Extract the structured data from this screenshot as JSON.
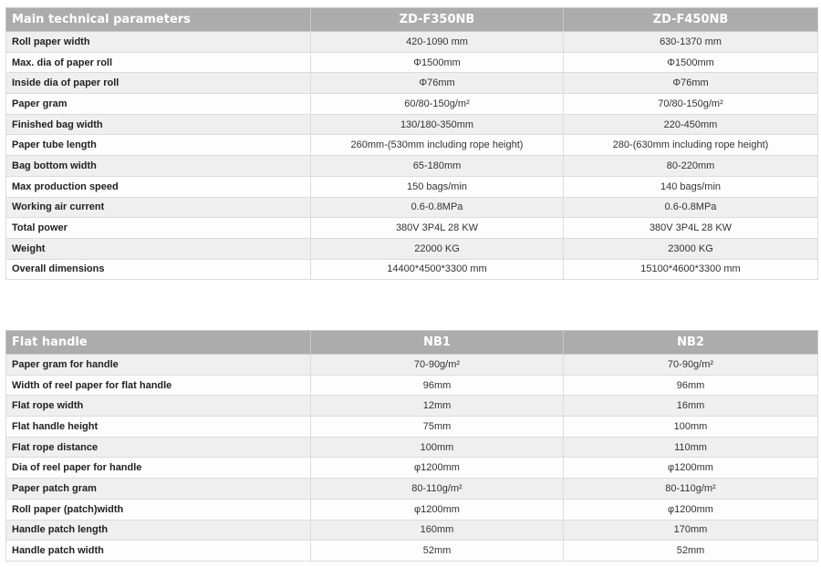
{
  "table1": {
    "headers": [
      "Main technical parameters",
      "ZD-F350NB",
      "ZD-F450NB"
    ],
    "rows": [
      [
        "Roll paper width",
        "420-1090 mm",
        "630-1370 mm"
      ],
      [
        "Max. dia of paper roll",
        "Φ1500mm",
        "Φ1500mm"
      ],
      [
        "Inside dia of paper roll",
        "Φ76mm",
        "Φ76mm"
      ],
      [
        "Paper gram",
        "60/80-150g/m²",
        "70/80-150g/m²"
      ],
      [
        "Finished bag width",
        "130/180-350mm",
        "220-450mm"
      ],
      [
        "Paper tube length",
        "260mm-(530mm including rope height)",
        "280-(630mm including rope height)"
      ],
      [
        "Bag bottom width",
        "65-180mm",
        "80-220mm"
      ],
      [
        "Max production speed",
        "150 bags/min",
        "140 bags/min"
      ],
      [
        "Working air current",
        "0.6-0.8MPa",
        "0.6-0.8MPa"
      ],
      [
        "Total power",
        "380V 3P4L 28 KW",
        "380V 3P4L 28 KW"
      ],
      [
        "Weight",
        "22000 KG",
        "23000 KG"
      ],
      [
        "Overall dimensions",
        "14400*4500*3300 mm",
        "15100*4600*3300 mm"
      ]
    ]
  },
  "table2": {
    "headers": [
      "Flat handle",
      "NB1",
      "NB2"
    ],
    "rows": [
      [
        "Paper gram for handle",
        "70-90g/m²",
        "70-90g/m²"
      ],
      [
        "Width of reel paper for flat handle",
        "96mm",
        "96mm"
      ],
      [
        "Flat rope width",
        "12mm",
        "16mm"
      ],
      [
        "Flat handle height",
        "75mm",
        "100mm"
      ],
      [
        "Flat rope distance",
        "100mm",
        "110mm"
      ],
      [
        "Dia of reel paper for handle",
        "φ1200mm",
        "φ1200mm"
      ],
      [
        "Paper patch gram",
        "80-110g/m²",
        "80-110g/m²"
      ],
      [
        "Roll paper (patch)width",
        "φ1200mm",
        "φ1200mm"
      ],
      [
        "Handle patch length",
        "160mm",
        "170mm"
      ],
      [
        "Handle patch width",
        "52mm",
        "52mm"
      ]
    ]
  }
}
